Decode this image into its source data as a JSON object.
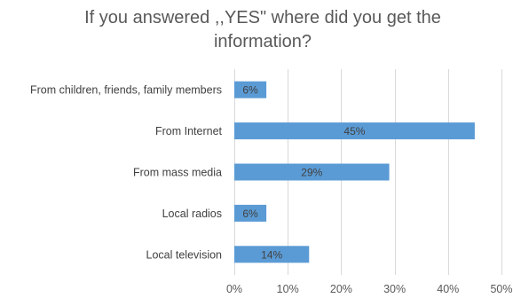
{
  "chart_data": {
    "type": "bar",
    "orientation": "horizontal",
    "title": "If you answered ,,YES\" where did you get the information?",
    "title_lines": [
      "If you answered ,,YES\" where did you get the",
      "information?"
    ],
    "categories": [
      "From children, friends, family members",
      "From Internet",
      "From mass media",
      "Local radios",
      "Local television"
    ],
    "values": [
      6,
      45,
      29,
      6,
      14
    ],
    "data_labels": [
      "6%",
      "45%",
      "29%",
      "6%",
      "14%"
    ],
    "xlim": [
      0,
      50
    ],
    "xticks": [
      0,
      10,
      20,
      30,
      40,
      50
    ],
    "xtick_labels": [
      "0%",
      "10%",
      "20%",
      "30%",
      "40%",
      "50%"
    ],
    "xlabel": "",
    "ylabel": "",
    "grid": "vertical",
    "legend": "none",
    "bar_color": "#5B9BD5",
    "grid_color": "#D9D9D9"
  }
}
